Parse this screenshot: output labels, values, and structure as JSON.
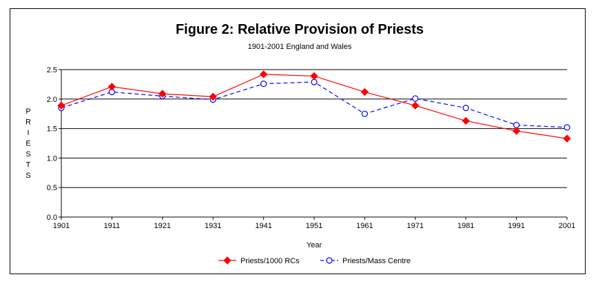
{
  "chart_data": {
    "type": "line",
    "title": "Figure 2: Relative Provision of Priests",
    "subtitle": "1901-2001 England and Wales",
    "xlabel": "Year",
    "ylabel": "PRIESTS",
    "ylim": [
      0.0,
      2.5
    ],
    "ytick_labels": [
      "0.0",
      "0.5",
      "1.0",
      "1.5",
      "2.0",
      "2.5"
    ],
    "categories": [
      "1901",
      "1911",
      "1921",
      "1931",
      "1941",
      "1951",
      "1961",
      "1971",
      "1981",
      "1991",
      "2001"
    ],
    "series": [
      {
        "name": "Priests/1000 RCs",
        "color": "#ff0000",
        "marker": "diamond",
        "line_style": "solid",
        "values": [
          1.89,
          2.21,
          2.09,
          2.04,
          2.42,
          2.39,
          2.12,
          1.89,
          1.63,
          1.46,
          1.33
        ]
      },
      {
        "name": "Priests/Mass Centre",
        "color": "#0000ff",
        "marker": "circle",
        "line_style": "dashed",
        "values": [
          1.85,
          2.12,
          2.05,
          1.99,
          2.26,
          2.29,
          1.75,
          2.01,
          1.85,
          1.56,
          1.52
        ]
      }
    ],
    "grid": true,
    "legend_position": "bottom"
  }
}
